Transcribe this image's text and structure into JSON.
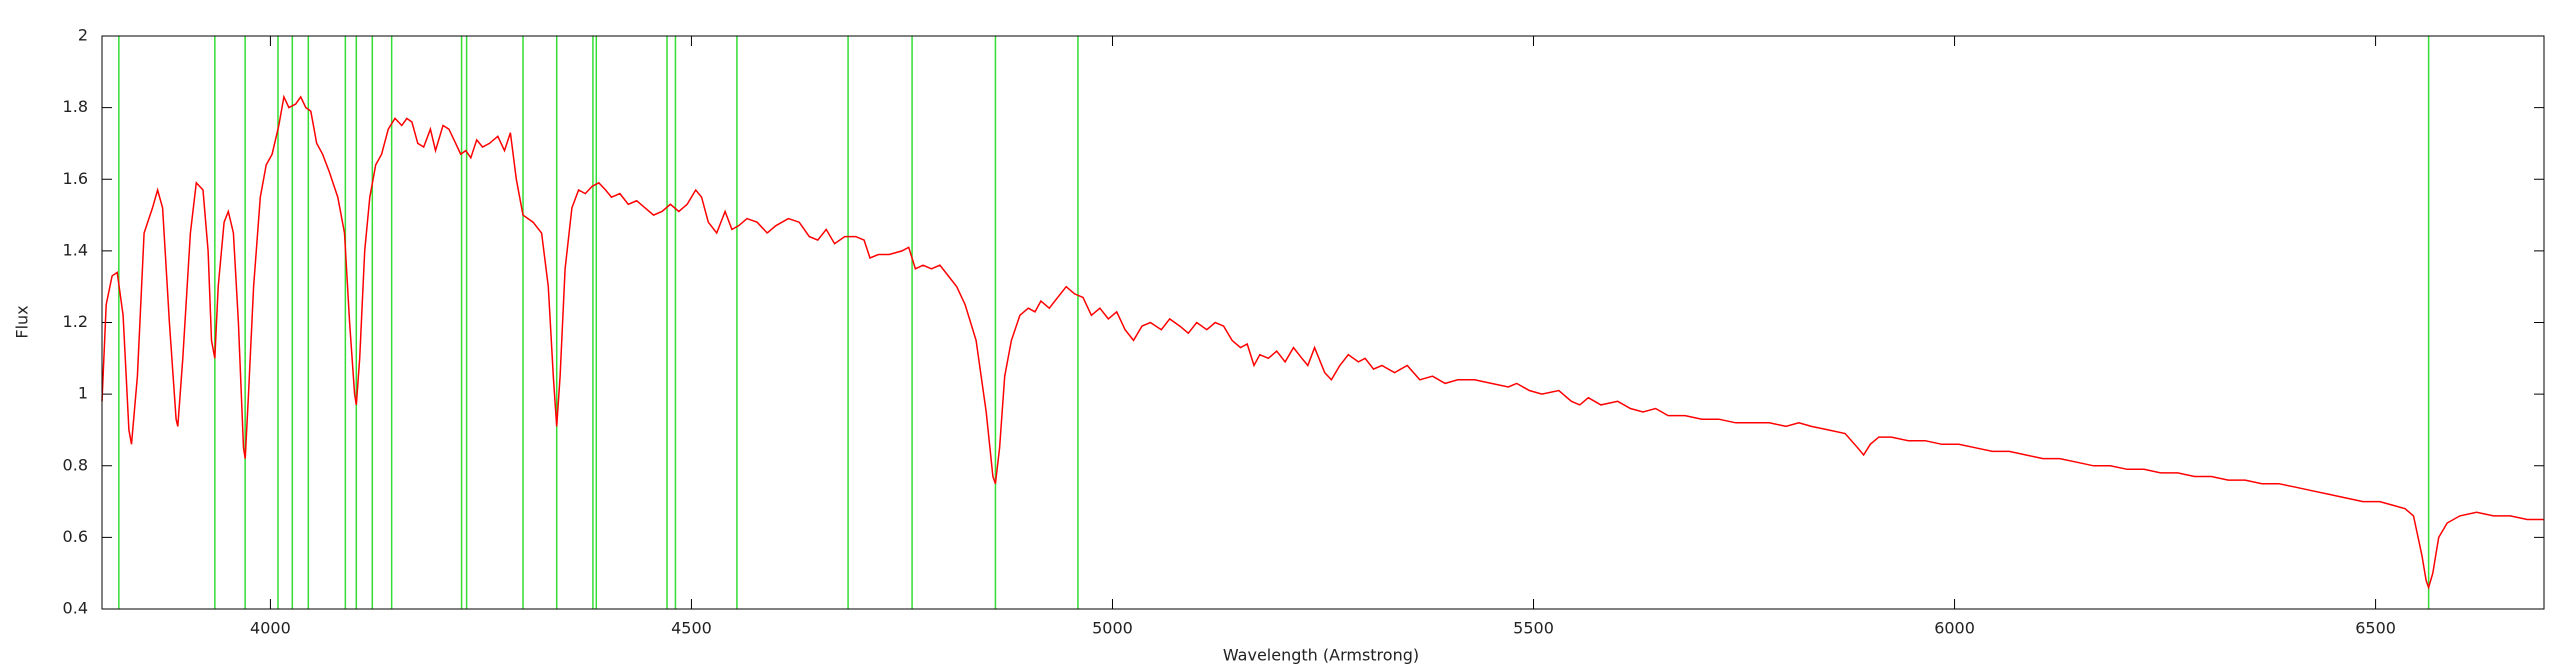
{
  "chart_data": {
    "type": "line",
    "xlabel": "Wavelength (Armstrong)",
    "ylabel": "Flux",
    "xlim": [
      3800,
      6700
    ],
    "ylim": [
      0.4,
      2
    ],
    "xticks": [
      4000,
      4500,
      5000,
      5500,
      6000,
      6500
    ],
    "yticks": [
      0.4,
      0.6,
      0.8,
      1,
      1.2,
      1.4,
      1.6,
      1.8,
      2
    ],
    "vlines": {
      "color": "#33dd33",
      "x": [
        3820,
        3934,
        3970,
        4009,
        4026,
        4045,
        4089,
        4102,
        4121,
        4144,
        4227,
        4233,
        4300,
        4340,
        4383,
        4387,
        4471,
        4481,
        4554,
        4686,
        4762,
        4861,
        4959,
        6563
      ]
    },
    "x": [
      3800,
      3805,
      3812,
      3818,
      3825,
      3832,
      3835,
      3842,
      3850,
      3860,
      3866,
      3872,
      3880,
      3888,
      3890,
      3896,
      3905,
      3912,
      3920,
      3926,
      3930,
      3934,
      3938,
      3945,
      3950,
      3956,
      3962,
      3968,
      3970,
      3974,
      3980,
      3988,
      3995,
      4002,
      4010,
      4016,
      4022,
      4030,
      4036,
      4042,
      4048,
      4055,
      4062,
      4070,
      4080,
      4088,
      4094,
      4100,
      4102,
      4106,
      4112,
      4118,
      4125,
      4132,
      4140,
      4148,
      4156,
      4162,
      4168,
      4175,
      4182,
      4190,
      4196,
      4205,
      4212,
      4220,
      4226,
      4232,
      4238,
      4245,
      4252,
      4260,
      4270,
      4278,
      4285,
      4292,
      4300,
      4312,
      4322,
      4330,
      4336,
      4340,
      4344,
      4350,
      4358,
      4366,
      4374,
      4382,
      4390,
      4398,
      4405,
      4415,
      4425,
      4435,
      4445,
      4455,
      4465,
      4475,
      4485,
      4495,
      4505,
      4512,
      4520,
      4530,
      4540,
      4548,
      4556,
      4566,
      4578,
      4590,
      4600,
      4615,
      4628,
      4640,
      4650,
      4660,
      4670,
      4682,
      4695,
      4705,
      4712,
      4722,
      4735,
      4750,
      4758,
      4766,
      4775,
      4785,
      4795,
      4805,
      4815,
      4825,
      4838,
      4850,
      4858,
      4861,
      4866,
      4872,
      4880,
      4890,
      4900,
      4908,
      4915,
      4925,
      4935,
      4945,
      4955,
      4965,
      4975,
      4985,
      4995,
      5005,
      5015,
      5025,
      5035,
      5045,
      5058,
      5068,
      5080,
      5090,
      5100,
      5112,
      5122,
      5132,
      5142,
      5152,
      5160,
      5168,
      5175,
      5185,
      5195,
      5205,
      5215,
      5225,
      5232,
      5240,
      5252,
      5260,
      5270,
      5280,
      5292,
      5300,
      5310,
      5320,
      5335,
      5350,
      5365,
      5380,
      5395,
      5410,
      5430,
      5450,
      5470,
      5480,
      5495,
      5510,
      5530,
      5545,
      5555,
      5565,
      5580,
      5600,
      5615,
      5630,
      5645,
      5660,
      5680,
      5700,
      5720,
      5740,
      5760,
      5780,
      5800,
      5815,
      5830,
      5850,
      5870,
      5885,
      5892,
      5900,
      5910,
      5925,
      5945,
      5965,
      5985,
      6005,
      6025,
      6045,
      6065,
      6085,
      6105,
      6125,
      6145,
      6165,
      6185,
      6205,
      6225,
      6245,
      6265,
      6285,
      6305,
      6325,
      6345,
      6365,
      6385,
      6405,
      6425,
      6445,
      6465,
      6485,
      6505,
      6520,
      6535,
      6545,
      6555,
      6560,
      6563,
      6568,
      6575,
      6585,
      6600,
      6620,
      6640,
      6660,
      6680,
      6700
    ],
    "series": [
      {
        "color": "#ff0000",
        "values": [
          0.98,
          1.25,
          1.33,
          1.34,
          1.22,
          0.9,
          0.86,
          1.05,
          1.45,
          1.52,
          1.57,
          1.52,
          1.2,
          0.93,
          0.91,
          1.1,
          1.45,
          1.59,
          1.57,
          1.4,
          1.15,
          1.1,
          1.3,
          1.48,
          1.51,
          1.45,
          1.2,
          0.85,
          0.82,
          1.0,
          1.3,
          1.55,
          1.64,
          1.67,
          1.75,
          1.83,
          1.8,
          1.81,
          1.83,
          1.8,
          1.79,
          1.7,
          1.67,
          1.62,
          1.55,
          1.45,
          1.2,
          1.0,
          0.97,
          1.1,
          1.4,
          1.55,
          1.64,
          1.67,
          1.74,
          1.77,
          1.75,
          1.77,
          1.76,
          1.7,
          1.69,
          1.74,
          1.68,
          1.75,
          1.74,
          1.7,
          1.67,
          1.68,
          1.66,
          1.71,
          1.69,
          1.7,
          1.72,
          1.68,
          1.73,
          1.6,
          1.5,
          1.48,
          1.45,
          1.3,
          1.05,
          0.91,
          1.05,
          1.35,
          1.52,
          1.57,
          1.56,
          1.58,
          1.59,
          1.57,
          1.55,
          1.56,
          1.53,
          1.54,
          1.52,
          1.5,
          1.51,
          1.53,
          1.51,
          1.53,
          1.57,
          1.55,
          1.48,
          1.45,
          1.51,
          1.46,
          1.47,
          1.49,
          1.48,
          1.45,
          1.47,
          1.49,
          1.48,
          1.44,
          1.43,
          1.46,
          1.42,
          1.44,
          1.44,
          1.43,
          1.38,
          1.39,
          1.39,
          1.4,
          1.41,
          1.35,
          1.36,
          1.35,
          1.36,
          1.33,
          1.3,
          1.25,
          1.15,
          0.95,
          0.77,
          0.75,
          0.85,
          1.05,
          1.15,
          1.22,
          1.24,
          1.23,
          1.26,
          1.24,
          1.27,
          1.3,
          1.28,
          1.27,
          1.22,
          1.24,
          1.21,
          1.23,
          1.18,
          1.15,
          1.19,
          1.2,
          1.18,
          1.21,
          1.19,
          1.17,
          1.2,
          1.18,
          1.2,
          1.19,
          1.15,
          1.13,
          1.14,
          1.08,
          1.11,
          1.1,
          1.12,
          1.09,
          1.13,
          1.1,
          1.08,
          1.13,
          1.06,
          1.04,
          1.08,
          1.11,
          1.09,
          1.1,
          1.07,
          1.08,
          1.06,
          1.08,
          1.04,
          1.05,
          1.03,
          1.04,
          1.04,
          1.03,
          1.02,
          1.03,
          1.01,
          1.0,
          1.01,
          0.98,
          0.97,
          0.99,
          0.97,
          0.98,
          0.96,
          0.95,
          0.96,
          0.94,
          0.94,
          0.93,
          0.93,
          0.92,
          0.92,
          0.92,
          0.91,
          0.92,
          0.91,
          0.9,
          0.89,
          0.85,
          0.83,
          0.86,
          0.88,
          0.88,
          0.87,
          0.87,
          0.86,
          0.86,
          0.85,
          0.84,
          0.84,
          0.83,
          0.82,
          0.82,
          0.81,
          0.8,
          0.8,
          0.79,
          0.79,
          0.78,
          0.78,
          0.77,
          0.77,
          0.76,
          0.76,
          0.75,
          0.75,
          0.74,
          0.73,
          0.72,
          0.71,
          0.7,
          0.7,
          0.69,
          0.68,
          0.66,
          0.55,
          0.48,
          0.46,
          0.5,
          0.6,
          0.64,
          0.66,
          0.67,
          0.66,
          0.66,
          0.65,
          0.65
        ]
      }
    ]
  }
}
